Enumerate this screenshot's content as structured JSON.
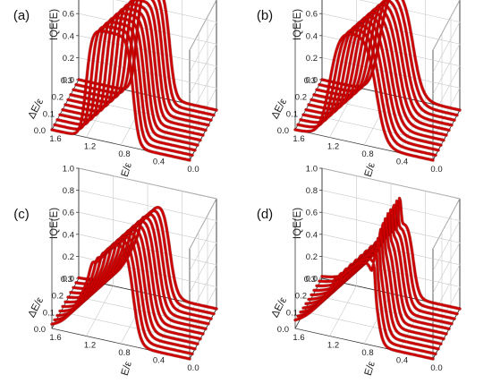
{
  "chart_data": [
    {
      "type": "line",
      "panel_label": "(a)",
      "zlabel": "IQE(E)",
      "xlabel": "ΔE/ε",
      "ylabel": "E/ε",
      "xticks": [
        "0.0",
        "0.1",
        "0.2",
        "0.3"
      ],
      "yticks": [
        "1.6",
        "1.2",
        "0.8",
        "0.4",
        "0.0"
      ],
      "zticks": [
        "0.0",
        "0.2",
        "0.4",
        "0.6",
        "0.8",
        "1.0"
      ],
      "xlim": [
        0,
        0.3
      ],
      "ylim": [
        1.6,
        0
      ],
      "zlim": [
        0,
        1.0
      ],
      "curves": {
        "count": 11,
        "peak": 1.0,
        "rise_width": 0.02,
        "fall_width": 0.02,
        "overshoot": 0,
        "spike": 0,
        "spike_shift": 0.5
      }
    },
    {
      "type": "line",
      "panel_label": "(b)",
      "zlabel": "IQE(E)",
      "xlabel": "ΔE/ε",
      "ylabel": "E/ε",
      "xticks": [
        "0.0",
        "0.1",
        "0.2",
        "0.3"
      ],
      "yticks": [
        "1.6",
        "1.2",
        "0.8",
        "0.4",
        "0.0"
      ],
      "zticks": [
        "0.0",
        "0.2",
        "0.4",
        "0.6",
        "0.8",
        "1.0"
      ],
      "xlim": [
        0,
        0.3
      ],
      "ylim": [
        1.6,
        0
      ],
      "zlim": [
        0,
        1.0
      ],
      "curves": {
        "count": 11,
        "peak": 1.0,
        "rise_width": 0.035,
        "fall_width": 0.035,
        "overshoot": 0,
        "spike": 0,
        "spike_shift": 0.5
      }
    },
    {
      "type": "line",
      "panel_label": "(c)",
      "zlabel": "IQE(E)",
      "xlabel": "ΔE/ε",
      "ylabel": "E/ε",
      "xticks": [
        "0.0",
        "0.1",
        "0.2",
        "0.3"
      ],
      "yticks": [
        "1.6",
        "1.2",
        "0.8",
        "0.4",
        "0.0"
      ],
      "zticks": [
        "0.0",
        "0.2",
        "0.4",
        "0.6",
        "0.8",
        "1.0"
      ],
      "xlim": [
        0,
        0.3
      ],
      "ylim": [
        1.6,
        0
      ],
      "zlim": [
        0,
        1.0
      ],
      "curves": {
        "count": 11,
        "peak": 0.95,
        "rise_width": 0.08,
        "fall_width": 0.025,
        "overshoot": 0.12,
        "spike": 0,
        "spike_shift": 0.5
      }
    },
    {
      "type": "line",
      "panel_label": "(d)",
      "zlabel": "IQE(E)",
      "xlabel": "ΔE/ε",
      "ylabel": "E/ε",
      "xticks": [
        "0.0",
        "0.1",
        "0.2",
        "0.3"
      ],
      "yticks": [
        "1.6",
        "1.2",
        "0.8",
        "0.4",
        "0.0"
      ],
      "zticks": [
        "0.0",
        "0.2",
        "0.4",
        "0.6",
        "0.8",
        "1.0"
      ],
      "xlim": [
        0,
        0.3
      ],
      "ylim": [
        1.6,
        0
      ],
      "zlim": [
        0,
        1.0
      ],
      "curves": {
        "count": 11,
        "peak": 0.82,
        "rise_width": 0.11,
        "fall_width": 0.02,
        "overshoot": 0.08,
        "spike": 0.25,
        "spike_shift": 0.6
      }
    }
  ]
}
